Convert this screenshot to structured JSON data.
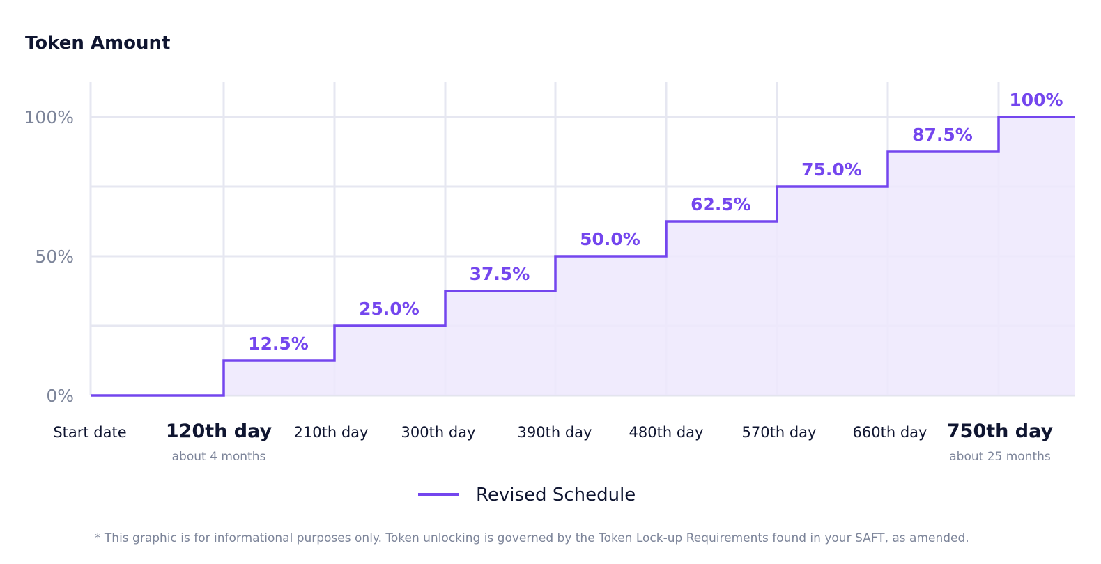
{
  "chart_data": {
    "type": "area",
    "step": true,
    "title": "Token Amount",
    "xlabel": "",
    "ylabel": "",
    "ylim": [
      0,
      100
    ],
    "grid": true,
    "legend_position": "bottom-center",
    "y_ticks": [
      "0%",
      "50%",
      "100%"
    ],
    "y_tick_values": [
      0,
      50,
      100
    ],
    "y_gridline_values": [
      0,
      25,
      50,
      75,
      100
    ],
    "x": [
      "Start date",
      "120th day",
      "210th day",
      "300th day",
      "390th day",
      "480th day",
      "570th day",
      "660th day",
      "750th day"
    ],
    "x_sublabels": [
      "",
      "about 4 months",
      "",
      "",
      "",
      "",
      "",
      "",
      "about 25 months"
    ],
    "x_emphasized": [
      false,
      true,
      false,
      false,
      false,
      false,
      false,
      false,
      true
    ],
    "series": [
      {
        "name": "Revised Schedule",
        "color": "#7446ee",
        "fill_color": "#ede7fd",
        "values": [
          0,
          12.5,
          25.0,
          37.5,
          50.0,
          62.5,
          75.0,
          87.5,
          100
        ],
        "labels": [
          "",
          "12.5%",
          "25.0%",
          "37.5%",
          "50.0%",
          "62.5%",
          "75.0%",
          "87.5%",
          "100%"
        ]
      }
    ],
    "footnote": "* This graphic is for informational purposes only. Token unlocking is governed by the Token Lock-up Requirements found in your SAFT, as amended."
  }
}
